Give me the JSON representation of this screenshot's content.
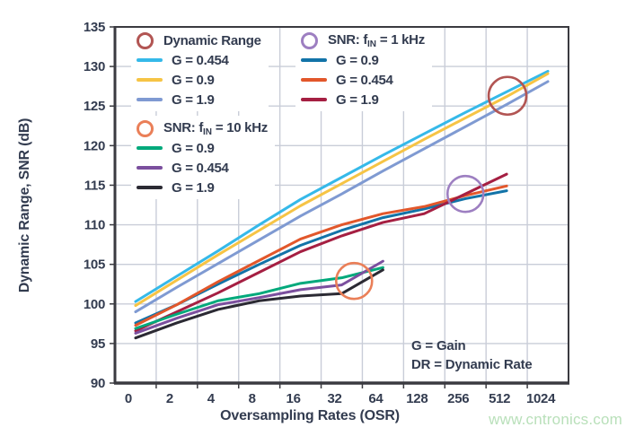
{
  "page": {
    "watermark": "www.cntronics.com"
  },
  "chart_data": {
    "type": "line",
    "x_title": "Oversampling Rates (OSR)",
    "y_title": "Dynamic Range, SNR (dB)",
    "categories": [
      "0",
      "2",
      "4",
      "8",
      "16",
      "32",
      "64",
      "128",
      "256",
      "512",
      "1024"
    ],
    "y_ticks": [
      90,
      95,
      100,
      105,
      110,
      115,
      120,
      125,
      130,
      135
    ],
    "ylim": [
      90,
      135
    ],
    "grid": true,
    "legend_position": "inside-top",
    "colors": {
      "grid": "#c9cdd8",
      "axis": "#3a3a40",
      "text": "#333c50",
      "watermark": "#b9e0ba"
    },
    "series": [
      {
        "name": "DR G = 0.454",
        "group": "Dynamic Range",
        "color": "#35b9e9",
        "values": [
          100.3,
          103.5,
          106.7,
          110.0,
          113.2,
          116.0,
          118.8,
          121.5,
          124.2,
          126.8,
          129.4
        ]
      },
      {
        "name": "DR G = 0.9",
        "group": "Dynamic Range",
        "color": "#f6c445",
        "values": [
          99.8,
          103.0,
          106.2,
          109.3,
          112.4,
          115.2,
          118.0,
          120.8,
          123.5,
          126.2,
          129.1
        ]
      },
      {
        "name": "DR G = 1.9",
        "group": "Dynamic Range",
        "color": "#7f9ad2",
        "values": [
          99.0,
          102.1,
          105.1,
          108.1,
          111.1,
          113.9,
          116.8,
          119.6,
          122.4,
          125.2,
          128.1
        ]
      },
      {
        "name": "SNR fIN = 1 kHz, G = 0.9",
        "group": "SNR: fIN = 1 kHz",
        "color": "#1273a8",
        "values": [
          97.6,
          99.9,
          102.5,
          105.0,
          107.4,
          109.3,
          110.9,
          112.0,
          113.3,
          114.3
        ]
      },
      {
        "name": "SNR fIN = 1 kHz, G = 0.454",
        "group": "SNR: fIN = 1 kHz",
        "color": "#e2572b",
        "values": [
          97.3,
          99.9,
          102.8,
          105.5,
          108.2,
          110.0,
          111.4,
          112.3,
          113.7,
          114.9
        ]
      },
      {
        "name": "SNR fIN = 1 kHz, G = 1.9",
        "group": "SNR: fIN = 1 kHz",
        "color": "#a51f42",
        "values": [
          96.6,
          99.0,
          101.4,
          104.0,
          106.6,
          108.6,
          110.3,
          111.4,
          113.9,
          116.4
        ]
      },
      {
        "name": "SNR fIN = 10 kHz, G = 0.9",
        "group": "SNR: fIN = 10 kHz",
        "color": "#00a97b",
        "values": [
          96.9,
          98.7,
          100.4,
          101.3,
          102.6,
          103.3,
          104.6
        ]
      },
      {
        "name": "SNR fIN = 10 kHz, G = 0.454",
        "group": "SNR: fIN = 10 kHz",
        "color": "#7b4f9e",
        "values": [
          96.3,
          98.2,
          99.9,
          100.8,
          101.8,
          102.4,
          105.4
        ]
      },
      {
        "name": "SNR fIN = 10 kHz, G = 1.9",
        "group": "SNR: fIN = 10 kHz",
        "color": "#2b2a33",
        "values": [
          95.7,
          97.6,
          99.3,
          100.4,
          101.0,
          101.3,
          104.3
        ]
      }
    ],
    "annotations": [
      {
        "name": "dynamic-range-circle",
        "x_index": 9.02,
        "value": 126.3,
        "r": 21,
        "color": "#b25553"
      },
      {
        "name": "snr-1khz-circle",
        "x_index": 8.0,
        "value": 113.9,
        "r": 20,
        "color": "#9d7fc1"
      },
      {
        "name": "snr-10khz-circle",
        "x_index": 5.3,
        "value": 102.9,
        "r": 20,
        "color": "#ea7f58"
      }
    ]
  },
  "legends": [
    {
      "id": "legend-dr",
      "ring_color": "#b25553",
      "title": {
        "pre": "Dynamic Range",
        "sub": "",
        "post": ""
      },
      "items": [
        {
          "label": "G = 0.454",
          "color": "#35b9e9"
        },
        {
          "label": "G = 0.9",
          "color": "#f6c445"
        },
        {
          "label": "G = 1.9",
          "color": "#7f9ad2"
        }
      ]
    },
    {
      "id": "legend-snr1k",
      "ring_color": "#9d7fc1",
      "title": {
        "pre": "SNR: f",
        "sub": "IN",
        "post": " = 1 kHz"
      },
      "items": [
        {
          "label": "G = 0.9",
          "color": "#1273a8"
        },
        {
          "label": "G = 0.454",
          "color": "#e2572b"
        },
        {
          "label": "G = 1.9",
          "color": "#a51f42"
        }
      ]
    },
    {
      "id": "legend-snr10k",
      "ring_color": "#ea7f58",
      "title": {
        "pre": "SNR: f",
        "sub": "IN",
        "post": " = 10 kHz"
      },
      "items": [
        {
          "label": "G = 0.9",
          "color": "#00a97b"
        },
        {
          "label": "G = 0.454",
          "color": "#7b4f9e"
        },
        {
          "label": "G = 1.9",
          "color": "#2b2a33"
        }
      ]
    }
  ],
  "notes": {
    "line1": "G = Gain",
    "line2": "DR = Dynamic Rate"
  }
}
